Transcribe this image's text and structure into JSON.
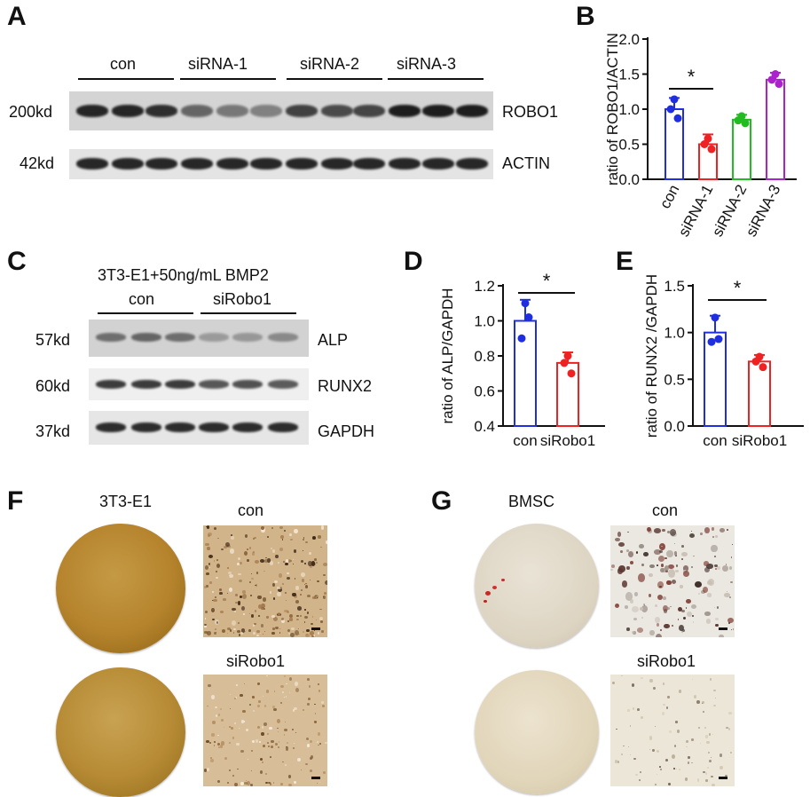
{
  "panels": {
    "A": {
      "label": "A",
      "groups": [
        "con",
        "siRNA-1",
        "siRNA-2",
        "siRNA-3"
      ],
      "markers": [
        "200kd",
        "42kd"
      ],
      "proteins": [
        "ROBO1",
        "ACTIN"
      ],
      "robo1_band_intensity": [
        0.95,
        0.95,
        0.9,
        0.6,
        0.5,
        0.45,
        0.8,
        0.75,
        0.78,
        1.0,
        1.0,
        1.0
      ]
    },
    "B": {
      "label": "B"
    },
    "C": {
      "label": "C",
      "condition": "3T3-E1+50ng/mL BMP2",
      "groups": [
        "con",
        "siRobo1"
      ],
      "markers": [
        "57kd",
        "60kd",
        "37kd"
      ],
      "proteins": [
        "ALP",
        "RUNX2",
        "GAPDH"
      ]
    },
    "D": {
      "label": "D"
    },
    "E": {
      "label": "E"
    },
    "F": {
      "label": "F",
      "cell_line": "3T3-E1",
      "row_labels": [
        "con",
        "siRobo1"
      ]
    },
    "G": {
      "label": "G",
      "cell_line": "BMSC",
      "row_labels": [
        "con",
        "siRobo1"
      ]
    }
  },
  "chart_data": [
    {
      "panel": "B",
      "type": "bar",
      "categories": [
        "con",
        "siRNA-1",
        "siRNA-2",
        "siRNA-3"
      ],
      "values": [
        1.0,
        0.5,
        0.85,
        1.42
      ],
      "errors": [
        0.16,
        0.14,
        0.07,
        0.1
      ],
      "points": [
        [
          1.14,
          1.0,
          0.87
        ],
        [
          0.58,
          0.5,
          0.43
        ],
        [
          0.9,
          0.84,
          0.8
        ],
        [
          1.5,
          1.42,
          1.36
        ]
      ],
      "colors": [
        "#1f2fe0",
        "#ee2222",
        "#22bb22",
        "#aa22cc"
      ],
      "ylabel": "ratio of ROBO1/ACTIN",
      "ylim": [
        0,
        2.0
      ],
      "yticks": [
        "0.0",
        "0.5",
        "1.0",
        "1.5",
        "2.0"
      ],
      "significance": [
        {
          "from": 0,
          "to": 1,
          "label": "*"
        }
      ]
    },
    {
      "panel": "D",
      "type": "bar",
      "categories": [
        "con",
        "siRobo1"
      ],
      "values": [
        1.0,
        0.76
      ],
      "errors": [
        0.12,
        0.06
      ],
      "points": [
        [
          1.1,
          0.9,
          1.02
        ],
        [
          0.8,
          0.76,
          0.7
        ]
      ],
      "colors": [
        "#1f2fe0",
        "#ee2222"
      ],
      "ylabel": "ratio of ALP/GAPDH",
      "ylim": [
        0.4,
        1.2
      ],
      "yticks": [
        "0.4",
        "0.6",
        "0.8",
        "1.0",
        "1.2"
      ],
      "significance": [
        {
          "from": 0,
          "to": 1,
          "label": "*"
        }
      ]
    },
    {
      "panel": "E",
      "type": "bar",
      "categories": [
        "con",
        "siRobo1"
      ],
      "values": [
        1.0,
        0.69
      ],
      "errors": [
        0.18,
        0.07
      ],
      "points": [
        [
          1.16,
          0.9,
          0.93
        ],
        [
          0.74,
          0.69,
          0.63
        ]
      ],
      "colors": [
        "#1f2fe0",
        "#ee2222"
      ],
      "ylabel": "ratio of RUNX2 /GAPDH",
      "ylim": [
        0,
        1.5
      ],
      "yticks": [
        "0.0",
        "0.5",
        "1.0",
        "1.5"
      ],
      "significance": [
        {
          "from": 0,
          "to": 1,
          "label": "*"
        }
      ]
    }
  ]
}
